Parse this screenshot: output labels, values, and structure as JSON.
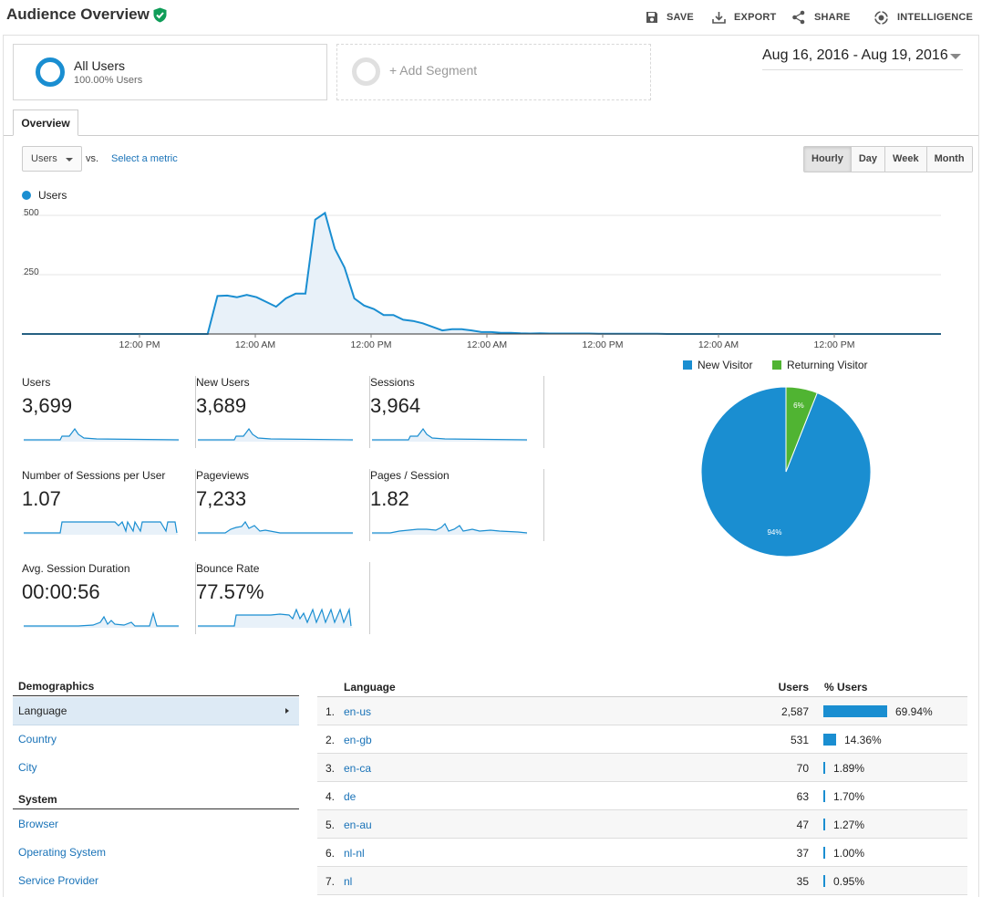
{
  "header": {
    "title": "Audience Overview",
    "actions": {
      "save": "SAVE",
      "export": "EXPORT",
      "share": "SHARE",
      "intelligence": "INTELLIGENCE"
    }
  },
  "segments": {
    "all_users": {
      "name": "All Users",
      "sub": "100.00% Users"
    },
    "add_segment": "+ Add Segment"
  },
  "date_range": "Aug 16, 2016 - Aug 19, 2016",
  "tabs": {
    "overview": "Overview"
  },
  "chart_controls": {
    "metric": "Users",
    "vs": "vs.",
    "select_metric": "Select a metric",
    "granularity": [
      "Hourly",
      "Day",
      "Week",
      "Month"
    ],
    "selected_granularity": "Hourly"
  },
  "chart_data": [
    {
      "type": "area",
      "legend": [
        "Users"
      ],
      "y_ticks": [
        "500",
        "250"
      ],
      "ylim": [
        0,
        500
      ],
      "x_tick_labels": [
        "12:00 PM",
        "12:00 AM",
        "12:00 PM",
        "12:00 AM",
        "12:00 PM",
        "12:00 AM",
        "12:00 PM"
      ],
      "series": [
        {
          "name": "Users",
          "values": [
            0,
            0,
            0,
            0,
            0,
            0,
            0,
            0,
            0,
            0,
            0,
            0,
            0,
            0,
            0,
            0,
            0,
            0,
            0,
            0,
            160,
            162,
            155,
            165,
            155,
            135,
            115,
            150,
            170,
            170,
            482,
            510,
            360,
            280,
            150,
            120,
            105,
            80,
            80,
            60,
            55,
            45,
            30,
            15,
            20,
            20,
            15,
            8,
            8,
            5,
            5,
            3,
            2,
            3,
            2,
            2,
            2,
            2,
            2,
            1,
            1,
            1,
            1,
            1,
            1,
            1,
            0,
            0,
            0,
            0,
            0,
            0,
            0,
            0,
            0,
            0,
            0,
            0,
            0,
            0,
            0,
            0,
            0,
            0,
            0,
            0,
            0,
            0,
            0,
            0,
            0,
            0,
            0,
            0,
            0
          ]
        }
      ],
      "color": "#1a8ed1"
    },
    {
      "type": "pie",
      "legend": [
        "New Visitor",
        "Returning Visitor"
      ],
      "values": [
        94,
        6
      ],
      "labels": [
        "94%",
        "6%"
      ],
      "colors": [
        "#1a8ed1",
        "#50b432"
      ]
    }
  ],
  "metrics": [
    {
      "label": "Users",
      "value": "3,699"
    },
    {
      "label": "New Users",
      "value": "3,689"
    },
    {
      "label": "Sessions",
      "value": "3,964"
    },
    {
      "label": "Number of Sessions per User",
      "value": "1.07"
    },
    {
      "label": "Pageviews",
      "value": "7,233"
    },
    {
      "label": "Pages / Session",
      "value": "1.82"
    },
    {
      "label": "Avg. Session Duration",
      "value": "00:00:56"
    },
    {
      "label": "Bounce Rate",
      "value": "77.57%"
    }
  ],
  "nav": {
    "demographics": "Demographics",
    "demographics_items": [
      "Language",
      "Country",
      "City"
    ],
    "system": "System",
    "system_items": [
      "Browser",
      "Operating System",
      "Service Provider"
    ]
  },
  "table": {
    "columns": {
      "language": "Language",
      "users": "Users",
      "pct_users": "% Users"
    },
    "rows": [
      {
        "num": "1.",
        "lang": "en-us",
        "users": "2,587",
        "pct": "69.94%",
        "share": 0.6994
      },
      {
        "num": "2.",
        "lang": "en-gb",
        "users": "531",
        "pct": "14.36%",
        "share": 0.1436
      },
      {
        "num": "3.",
        "lang": "en-ca",
        "users": "70",
        "pct": "1.89%",
        "share": 0.0189
      },
      {
        "num": "4.",
        "lang": "de",
        "users": "63",
        "pct": "1.70%",
        "share": 0.017
      },
      {
        "num": "5.",
        "lang": "en-au",
        "users": "47",
        "pct": "1.27%",
        "share": 0.0127
      },
      {
        "num": "6.",
        "lang": "nl-nl",
        "users": "37",
        "pct": "1.00%",
        "share": 0.01
      },
      {
        "num": "7.",
        "lang": "nl",
        "users": "35",
        "pct": "0.95%",
        "share": 0.0095
      }
    ]
  }
}
